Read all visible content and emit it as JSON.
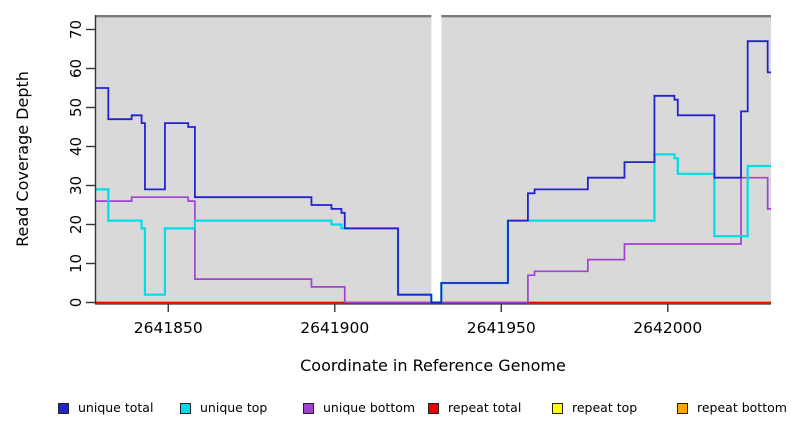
{
  "figure": {
    "background": "#FFFFFF",
    "panel_background": "#D9D9D9",
    "panel_top_border_color": "#7A7A7A",
    "axis_color": "#333333",
    "masked_region_color": "#FFFFFF"
  },
  "chart_data": {
    "type": "line",
    "subtype": "step-after-coverage",
    "title": "",
    "xlabel": "Coordinate in Reference Genome",
    "ylabel": "Read Coverage Depth",
    "xlim": [
      2641828,
      2642031
    ],
    "ylim": [
      0,
      70
    ],
    "x_ticks": [
      2641850,
      2641900,
      2641950,
      2642000
    ],
    "y_ticks": [
      0,
      10,
      20,
      30,
      40,
      50,
      60,
      70
    ],
    "grid": false,
    "legend_position": "bottom",
    "masked_region": {
      "x_start": 2641929,
      "x_end": 2641932
    },
    "x_end": 2642031,
    "series": [
      {
        "name": "unique total",
        "color": "#2323CE",
        "points": [
          [
            2641828,
            55
          ],
          [
            2641832,
            47
          ],
          [
            2641839,
            48
          ],
          [
            2641842,
            46
          ],
          [
            2641843,
            29
          ],
          [
            2641849,
            46
          ],
          [
            2641856,
            45
          ],
          [
            2641858,
            27
          ],
          [
            2641893,
            25
          ],
          [
            2641899,
            24
          ],
          [
            2641902,
            23
          ],
          [
            2641903,
            19
          ],
          [
            2641919,
            2
          ],
          [
            2641929,
            0
          ],
          [
            2641932,
            5
          ],
          [
            2641952,
            21
          ],
          [
            2641958,
            28
          ],
          [
            2641960,
            29
          ],
          [
            2641976,
            32
          ],
          [
            2641987,
            36
          ],
          [
            2641996,
            53
          ],
          [
            2642002,
            52
          ],
          [
            2642003,
            48
          ],
          [
            2642014,
            32
          ],
          [
            2642022,
            49
          ],
          [
            2642024,
            67
          ],
          [
            2642030,
            59
          ]
        ]
      },
      {
        "name": "unique top",
        "color": "#00DDE6",
        "points": [
          [
            2641828,
            29
          ],
          [
            2641832,
            21
          ],
          [
            2641842,
            19
          ],
          [
            2641843,
            2
          ],
          [
            2641849,
            19
          ],
          [
            2641858,
            21
          ],
          [
            2641899,
            20
          ],
          [
            2641902,
            19
          ],
          [
            2641919,
            2
          ],
          [
            2641929,
            0
          ],
          [
            2641932,
            5
          ],
          [
            2641952,
            21
          ],
          [
            2641996,
            38
          ],
          [
            2642002,
            37
          ],
          [
            2642003,
            33
          ],
          [
            2642014,
            17
          ],
          [
            2642024,
            35
          ]
        ]
      },
      {
        "name": "unique bottom",
        "color": "#A341D1",
        "points": [
          [
            2641828,
            26
          ],
          [
            2641839,
            27
          ],
          [
            2641856,
            26
          ],
          [
            2641858,
            6
          ],
          [
            2641893,
            4
          ],
          [
            2641903,
            0
          ],
          [
            2641958,
            7
          ],
          [
            2641960,
            8
          ],
          [
            2641976,
            11
          ],
          [
            2641987,
            15
          ],
          [
            2642022,
            32
          ],
          [
            2642030,
            24
          ]
        ]
      },
      {
        "name": "repeat total",
        "color": "#EE0000",
        "points": [
          [
            2641828,
            0
          ]
        ]
      },
      {
        "name": "repeat top",
        "color": "#FFFF00",
        "points": [
          [
            2641828,
            0
          ]
        ]
      },
      {
        "name": "repeat bottom",
        "color": "#FFA500",
        "points": [
          [
            2641828,
            0
          ]
        ]
      }
    ]
  }
}
